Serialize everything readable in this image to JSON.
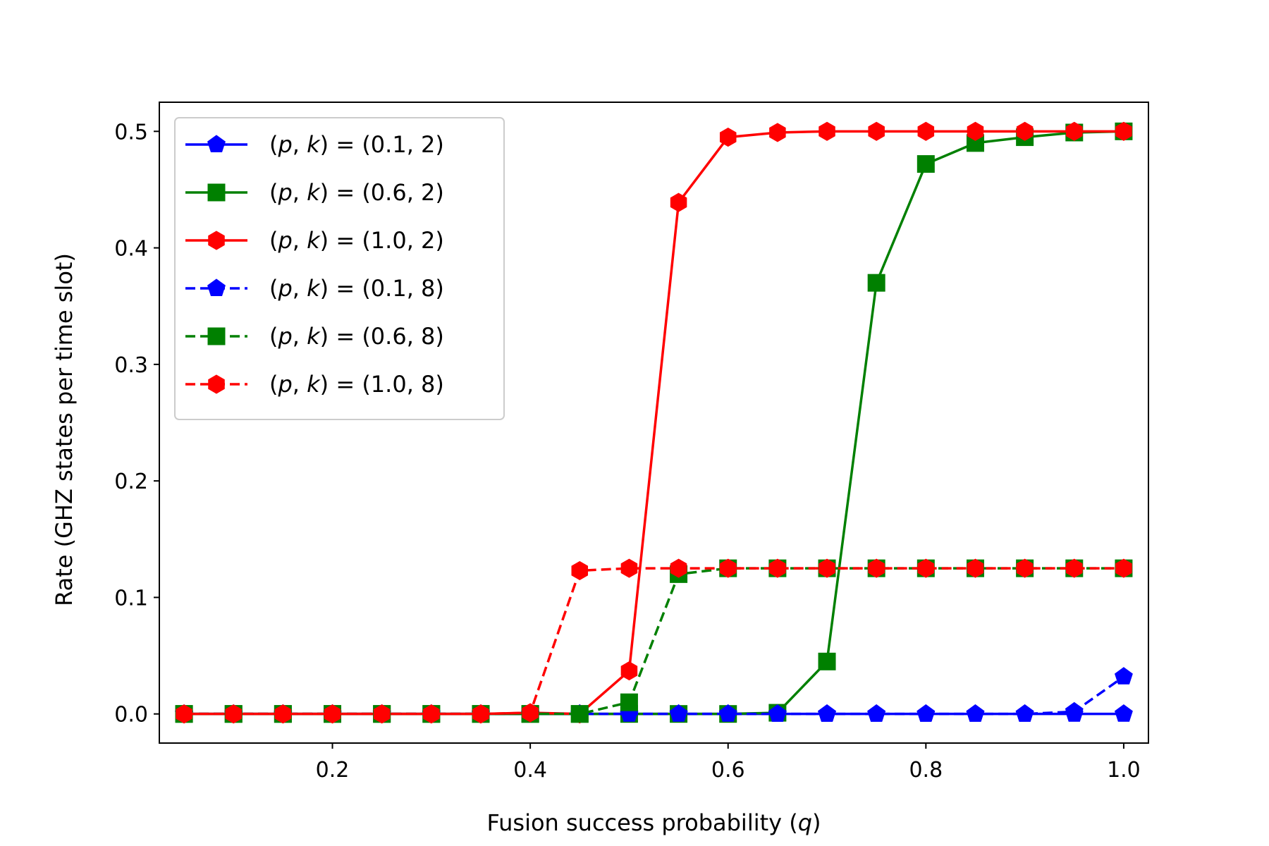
{
  "chart_data": {
    "type": "line",
    "title": "",
    "xlabel": "Fusion success probability (",
    "xlabel_var": "q",
    "xlabel_suffix": ")",
    "ylabel": "Rate (GHZ states per time slot)",
    "xlim": [
      0.025,
      1.025
    ],
    "ylim": [
      -0.025,
      0.525
    ],
    "xticks": [
      0.2,
      0.4,
      0.6,
      0.8,
      1.0
    ],
    "xtick_labels": [
      "0.2",
      "0.4",
      "0.6",
      "0.8",
      "1.0"
    ],
    "yticks": [
      0.0,
      0.1,
      0.2,
      0.3,
      0.4,
      0.5
    ],
    "ytick_labels": [
      "0.0",
      "0.1",
      "0.2",
      "0.3",
      "0.4",
      "0.5"
    ],
    "grid": false,
    "legend_position": "top-left",
    "x": [
      0.05,
      0.1,
      0.15,
      0.2,
      0.25,
      0.3,
      0.35,
      0.4,
      0.45,
      0.5,
      0.55,
      0.6,
      0.65,
      0.7,
      0.75,
      0.8,
      0.85,
      0.9,
      0.95,
      1.0
    ],
    "series": [
      {
        "name": "(p, k) = (0.1, 2)",
        "legend_prefix": "(",
        "legend_p": "p",
        "legend_sep": ", ",
        "legend_k": "k",
        "legend_suffix": ") = (0.1, 2)",
        "color": "#0000ff",
        "dash": "solid",
        "marker": "pentagon",
        "values": [
          0,
          0,
          0,
          0,
          0,
          0,
          0,
          0,
          0,
          0,
          0,
          0,
          0,
          0,
          0,
          0,
          0,
          0,
          0,
          0
        ]
      },
      {
        "name": "(p, k) = (0.6, 2)",
        "legend_prefix": "(",
        "legend_p": "p",
        "legend_sep": ", ",
        "legend_k": "k",
        "legend_suffix": ") = (0.6, 2)",
        "color": "#008000",
        "dash": "solid",
        "marker": "square",
        "values": [
          0,
          0,
          0,
          0,
          0,
          0,
          0,
          0,
          0,
          0,
          0,
          0,
          0.001,
          0.045,
          0.37,
          0.472,
          0.49,
          0.495,
          0.499,
          0.5
        ]
      },
      {
        "name": "(p, k) = (1.0, 2)",
        "legend_prefix": "(",
        "legend_p": "p",
        "legend_sep": ", ",
        "legend_k": "k",
        "legend_suffix": ") = (1.0, 2)",
        "color": "#ff0000",
        "dash": "solid",
        "marker": "hexagon",
        "values": [
          0,
          0,
          0,
          0,
          0,
          0,
          0,
          0.001,
          0,
          0.037,
          0.439,
          0.495,
          0.499,
          0.5,
          0.5,
          0.5,
          0.5,
          0.5,
          0.5,
          0.5
        ]
      },
      {
        "name": "(p, k) = (0.1, 8)",
        "legend_prefix": "(",
        "legend_p": "p",
        "legend_sep": ", ",
        "legend_k": "k",
        "legend_suffix": ") = (0.1, 8)",
        "color": "#0000ff",
        "dash": "dashed",
        "marker": "pentagon",
        "values": [
          0,
          0,
          0,
          0,
          0,
          0,
          0,
          0,
          0,
          0,
          0,
          0,
          0,
          0,
          0,
          0,
          0,
          0,
          0.002,
          0.032
        ]
      },
      {
        "name": "(p, k) = (0.6, 8)",
        "legend_prefix": "(",
        "legend_p": "p",
        "legend_sep": ", ",
        "legend_k": "k",
        "legend_suffix": ") = (0.6, 8)",
        "color": "#008000",
        "dash": "dashed",
        "marker": "square",
        "values": [
          0,
          0,
          0,
          0,
          0,
          0,
          0,
          0,
          0,
          0.01,
          0.12,
          0.125,
          0.125,
          0.125,
          0.125,
          0.125,
          0.125,
          0.125,
          0.125,
          0.125
        ]
      },
      {
        "name": "(p, k) = (1.0, 8)",
        "legend_prefix": "(",
        "legend_p": "p",
        "legend_sep": ", ",
        "legend_k": "k",
        "legend_suffix": ") = (1.0, 8)",
        "color": "#ff0000",
        "dash": "dashed",
        "marker": "hexagon",
        "values": [
          0,
          0,
          0,
          0,
          0,
          0,
          0,
          0.001,
          0.123,
          0.125,
          0.125,
          0.125,
          0.125,
          0.125,
          0.125,
          0.125,
          0.125,
          0.125,
          0.125,
          0.125
        ]
      }
    ]
  }
}
